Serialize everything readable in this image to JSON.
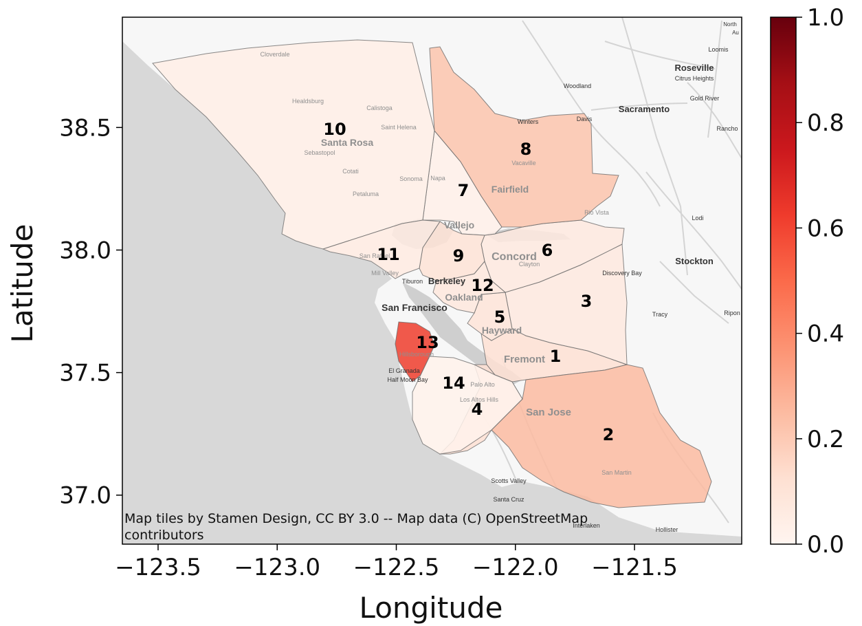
{
  "chart_data": {
    "type": "choropleth",
    "xlabel": "Longitude",
    "ylabel": "Latitude",
    "xlim": [
      -123.65,
      -121.05
    ],
    "ylim": [
      36.8,
      38.95
    ],
    "x_ticks": [
      -123.5,
      -123.0,
      -122.5,
      -122.0,
      -121.5
    ],
    "y_ticks": [
      37.0,
      37.5,
      38.0,
      38.5
    ],
    "x_tick_labels": [
      "−123.5",
      "−123.0",
      "−122.5",
      "−122.0",
      "−121.5"
    ],
    "y_tick_labels": [
      "37.0",
      "37.5",
      "38.0",
      "38.5"
    ],
    "colorbar": {
      "colormap": "Reds",
      "range": [
        0.0,
        1.0
      ],
      "ticks": [
        0.0,
        0.2,
        0.4,
        0.6,
        0.8,
        1.0
      ],
      "tick_labels": [
        "0.0",
        "0.2",
        "0.4",
        "0.6",
        "0.8",
        "1.0"
      ]
    },
    "regions": [
      {
        "label": "1",
        "value": 0.12
      },
      {
        "label": "2",
        "value": 0.25
      },
      {
        "label": "3",
        "value": 0.07
      },
      {
        "label": "4",
        "value": 0.12
      },
      {
        "label": "5",
        "value": 0.1
      },
      {
        "label": "6",
        "value": 0.07
      },
      {
        "label": "7",
        "value": 0.03
      },
      {
        "label": "8",
        "value": 0.22
      },
      {
        "label": "9",
        "value": 0.11
      },
      {
        "label": "10",
        "value": 0.04
      },
      {
        "label": "11",
        "value": 0.06
      },
      {
        "label": "12",
        "value": 0.08
      },
      {
        "label": "13",
        "value": 0.62
      },
      {
        "label": "14",
        "value": 0.02
      }
    ],
    "attribution": [
      "Map tiles by Stamen Design, CC BY 3.0 -- Map data (C) OpenStreetMap",
      "contributors"
    ],
    "basemap_places": [
      "Santa Rosa",
      "Fairfield",
      "Vallejo",
      "Concord",
      "Berkeley",
      "Oakland",
      "San Francisco",
      "Hayward",
      "Fremont",
      "San Jose",
      "Sacramento",
      "Roseville",
      "Stockton",
      "Davis",
      "Woodland",
      "Vacaville",
      "Rio Vista",
      "Tracy",
      "Discovery Bay",
      "Clayton",
      "Palo Alto",
      "Los Altos Hills",
      "Half Moon Bay",
      "El Granada",
      "Hillsborough",
      "Scotts Valley",
      "Santa Cruz",
      "Interlaken",
      "Hollister",
      "San Martin",
      "Healdsburg",
      "Cloverdale",
      "Calistoga",
      "Saint Helena",
      "Sebastopol",
      "Cotati",
      "Petaluma",
      "Sonoma",
      "Napa",
      "Mill Valley",
      "San Rafael",
      "Tiburon",
      "Loomis",
      "Citrus Heights",
      "Gold River",
      "Rancho",
      "Winters",
      "Lodi",
      "Ripon",
      "North",
      "Au"
    ]
  }
}
